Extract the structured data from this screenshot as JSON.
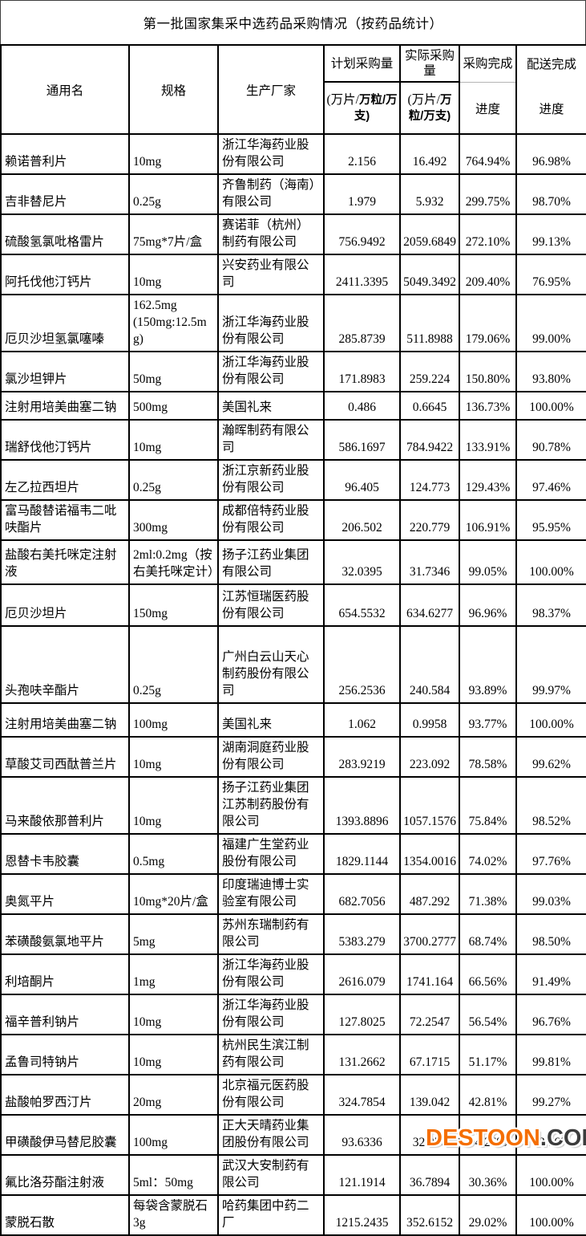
{
  "title": "第一批国家集采中选药品采购情况（按药品统计）",
  "watermark": {
    "brand": "DESTOON",
    "suffix": ".COM",
    "brand_color": "#f56e00",
    "suffix_color": "#3c3c3c"
  },
  "table": {
    "headers": {
      "generic_name": "通用名",
      "spec": "规格",
      "manufacturer": "生产厂家",
      "planned": {
        "label": "计划采购量",
        "unit_prefix": "(万片/",
        "unit_bold": "万粒/万支)"
      },
      "actual": {
        "label": "实际采购量",
        "unit_prefix": "(万片/",
        "unit_bold": "万粒/万支)"
      },
      "purchase_progress": {
        "line1": "采购完成",
        "line2": "进度"
      },
      "delivery_progress": {
        "line1": "配送完成",
        "line2": "进度"
      }
    },
    "rows": [
      {
        "generic_name": "赖诺普利片",
        "spec": "10mg",
        "manufacturer": "浙江华海药业股份有限公司",
        "planned": "2.156",
        "actual": "16.492",
        "purchase_progress": "764.94%",
        "delivery_progress": "96.98%"
      },
      {
        "generic_name": "吉非替尼片",
        "spec": "0.25g",
        "manufacturer": "齐鲁制药（海南）有限公司",
        "planned": "1.979",
        "actual": "5.932",
        "purchase_progress": "299.75%",
        "delivery_progress": "98.70%"
      },
      {
        "generic_name": "硫酸氢氯吡格雷片",
        "spec": "75mg*7片/盒",
        "manufacturer": "赛诺菲（杭州）制药有限公司",
        "planned": "756.9492",
        "actual": "2059.6849",
        "purchase_progress": "272.10%",
        "delivery_progress": "99.13%"
      },
      {
        "generic_name": "阿托伐他汀钙片",
        "spec": "10mg",
        "manufacturer": "兴安药业有限公司",
        "planned": "2411.3395",
        "actual": "5049.3492",
        "purchase_progress": "209.40%",
        "delivery_progress": "76.95%"
      },
      {
        "generic_name": "厄贝沙坦氢氯噻嗪",
        "spec": "162.5mg\n(150mg:12.5mg)",
        "manufacturer": "浙江华海药业股份有限公司",
        "planned": "285.8739",
        "actual": "511.8988",
        "purchase_progress": "179.06%",
        "delivery_progress": "99.00%"
      },
      {
        "generic_name": "氯沙坦钾片",
        "spec": "50mg",
        "manufacturer": "浙江华海药业股份有限公司",
        "planned": "171.8983",
        "actual": "259.224",
        "purchase_progress": "150.80%",
        "delivery_progress": "93.80%"
      },
      {
        "generic_name": "注射用培美曲塞二钠",
        "spec": "500mg",
        "manufacturer": "美国礼来",
        "planned": "0.486",
        "actual": "0.6645",
        "purchase_progress": "136.73%",
        "delivery_progress": "100.00%"
      },
      {
        "generic_name": "瑞舒伐他汀钙片",
        "spec": "10mg",
        "manufacturer": "瀚晖制药有限公司",
        "planned": "586.1697",
        "actual": "784.9422",
        "purchase_progress": "133.91%",
        "delivery_progress": "90.78%"
      },
      {
        "generic_name": "左乙拉西坦片",
        "spec": "0.25g",
        "manufacturer": "浙江京新药业股份有限公司",
        "planned": "96.405",
        "actual": "124.773",
        "purchase_progress": "129.43%",
        "delivery_progress": "97.46%"
      },
      {
        "generic_name": "富马酸替诺福韦二吡呋酯片",
        "spec": "300mg",
        "manufacturer": "成都倍特药业股份有限公司",
        "planned": "206.502",
        "actual": "220.779",
        "purchase_progress": "106.91%",
        "delivery_progress": "95.95%"
      },
      {
        "generic_name": "盐酸右美托咪定注射液",
        "spec": "2ml:0.2mg（按右美托咪定计）",
        "manufacturer": "扬子江药业集团有限公司",
        "planned": "32.0395",
        "actual": "31.7346",
        "purchase_progress": "99.05%",
        "delivery_progress": "100.00%"
      },
      {
        "generic_name": "厄贝沙坦片",
        "spec": "150mg",
        "manufacturer": "江苏恒瑞医药股份有限公司",
        "planned": "654.5532",
        "actual": "634.6277",
        "purchase_progress": "96.96%",
        "delivery_progress": "98.37%"
      },
      {
        "generic_name": "头孢呋辛酯片",
        "spec": "0.25g",
        "manufacturer": "广州白云山天心制药股份有限公司",
        "planned": "256.2536",
        "actual": "240.584",
        "purchase_progress": "93.89%",
        "delivery_progress": "99.97%"
      },
      {
        "generic_name": "注射用培美曲塞二钠",
        "spec": "100mg",
        "manufacturer": "美国礼来",
        "planned": "1.062",
        "actual": "0.9958",
        "purchase_progress": "93.77%",
        "delivery_progress": "100.00%"
      },
      {
        "generic_name": "草酸艾司西酞普兰片",
        "spec": "10mg",
        "manufacturer": "湖南洞庭药业股份有限公司",
        "planned": "283.9219",
        "actual": "223.092",
        "purchase_progress": "78.58%",
        "delivery_progress": "99.62%"
      },
      {
        "generic_name": "马来酸依那普利片",
        "spec": "10mg",
        "manufacturer": "扬子江药业集团江苏制药股份有限公司",
        "planned": "1393.8896",
        "actual": "1057.1576",
        "purchase_progress": "75.84%",
        "delivery_progress": "98.52%"
      },
      {
        "generic_name": "恩替卡韦胶囊",
        "spec": "0.5mg",
        "manufacturer": "福建广生堂药业股份有限公司",
        "planned": "1829.1144",
        "actual": "1354.0016",
        "purchase_progress": "74.02%",
        "delivery_progress": "97.76%"
      },
      {
        "generic_name": "奥氮平片",
        "spec": "10mg*20片/盒",
        "manufacturer": "印度瑞迪博士实验室有限公司",
        "planned": "682.7056",
        "actual": "487.292",
        "purchase_progress": "71.38%",
        "delivery_progress": "99.03%"
      },
      {
        "generic_name": "苯磺酸氨氯地平片",
        "spec": "5mg",
        "manufacturer": "苏州东瑞制药有限公司",
        "planned": "5383.279",
        "actual": "3700.2777",
        "purchase_progress": "68.74%",
        "delivery_progress": "98.50%"
      },
      {
        "generic_name": "利培酮片",
        "spec": "1mg",
        "manufacturer": "浙江华海药业股份有限公司",
        "planned": "2616.079",
        "actual": "1741.164",
        "purchase_progress": "66.56%",
        "delivery_progress": "91.49%"
      },
      {
        "generic_name": "福辛普利钠片",
        "spec": "10mg",
        "manufacturer": "浙江华海药业股份有限公司",
        "planned": "127.8025",
        "actual": "72.2547",
        "purchase_progress": "56.54%",
        "delivery_progress": "96.76%"
      },
      {
        "generic_name": "孟鲁司特钠片",
        "spec": "10mg",
        "manufacturer": "杭州民生滨江制药有限公司",
        "planned": "131.2662",
        "actual": "67.1715",
        "purchase_progress": "51.17%",
        "delivery_progress": "99.81%"
      },
      {
        "generic_name": "盐酸帕罗西汀片",
        "spec": "20mg",
        "manufacturer": "北京福元医药股份有限公司",
        "planned": "324.7854",
        "actual": "139.042",
        "purchase_progress": "42.81%",
        "delivery_progress": "99.27%"
      },
      {
        "generic_name": "甲磺酸伊马替尼胶囊",
        "spec": "100mg",
        "manufacturer": "正大天晴药业集团股份有限公司",
        "planned": "93.6336",
        "actual": "32.076",
        "purchase_progress": "34.26%",
        "delivery_progress": "88.16%"
      },
      {
        "generic_name": "氟比洛芬酯注射液",
        "spec": "5ml：50mg",
        "manufacturer": "武汉大安制药有限公司",
        "planned": "121.1914",
        "actual": "36.7894",
        "purchase_progress": "30.36%",
        "delivery_progress": "100.00%"
      },
      {
        "generic_name": "蒙脱石散",
        "spec": "每袋含蒙脱石\n3g",
        "manufacturer": "哈药集团中药二厂",
        "planned": "1215.2435",
        "actual": "352.6152",
        "purchase_progress": "29.02%",
        "delivery_progress": "100.00%"
      }
    ]
  }
}
